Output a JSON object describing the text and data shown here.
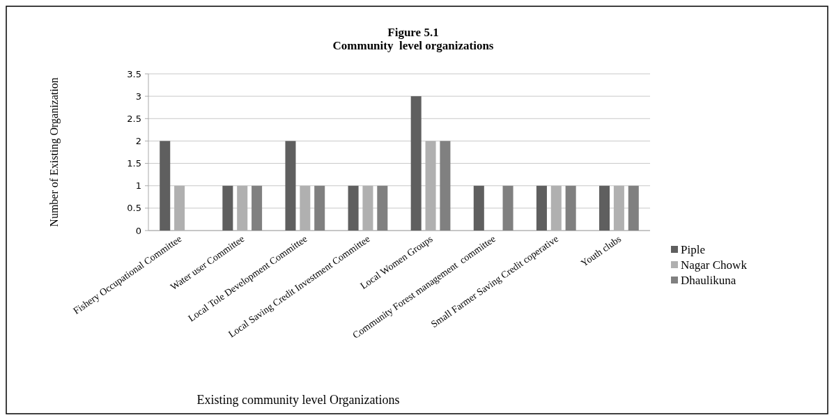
{
  "chart_data": {
    "type": "bar",
    "title": "Figure 5.1\nCommunity  level organizations",
    "xlabel": "Existing community level Organizations",
    "ylabel": "Number of Existing Organization",
    "categories": [
      "Fishery Occupational Committee",
      "Water user Committee",
      "Local Tole Development Committee",
      "Local Saving Credit Investment Committee",
      "Local Women Groups",
      "Community Forest management  committee",
      "Small Farmer Saving Credit coperative",
      "Youth clubs"
    ],
    "series": [
      {
        "name": "Piple",
        "color": "#5f5f5f",
        "values": [
          2,
          1,
          2,
          1,
          3,
          1,
          1,
          1
        ]
      },
      {
        "name": "Nagar Chowk",
        "color": "#b0b0b0",
        "values": [
          1,
          1,
          1,
          1,
          2,
          0,
          1,
          1
        ]
      },
      {
        "name": "Dhaulikuna",
        "color": "#808080",
        "values": [
          0,
          1,
          1,
          1,
          2,
          1,
          1,
          1
        ]
      }
    ],
    "ylim": [
      0,
      3.5
    ],
    "yticks": [
      0,
      0.5,
      1,
      1.5,
      2,
      2.5,
      3,
      3.5
    ],
    "grid": "y",
    "legend": "right"
  }
}
